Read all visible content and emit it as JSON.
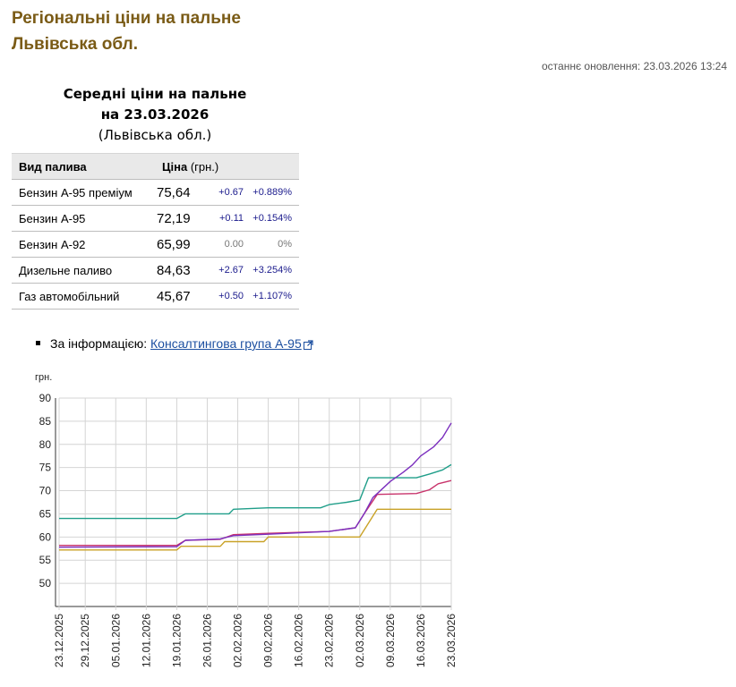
{
  "page": {
    "title_line1": "Регіональні ціни на пальне",
    "title_line2": "Львівська обл.",
    "updated": "останнє оновлення: 23.03.2026 13:24"
  },
  "table": {
    "caption_line1": "Середні ціни на пальне",
    "caption_line2": "на 23.03.2026",
    "caption_region": "(Львівська обл.)",
    "header_fuel": "Вид палива",
    "header_price": "Ціна",
    "header_unit": "(грн.)",
    "rows": [
      {
        "fuel": "Бензин А-95 преміум",
        "price": "75,64",
        "change": "+0.67",
        "pct": "+0.889%"
      },
      {
        "fuel": "Бензин А-95",
        "price": "72,19",
        "change": "+0.11",
        "pct": "+0.154%"
      },
      {
        "fuel": "Бензин А-92",
        "price": "65,99",
        "change": "0.00",
        "pct": "0%"
      },
      {
        "fuel": "Дизельне паливо",
        "price": "84,63",
        "change": "+2.67",
        "pct": "+3.254%"
      },
      {
        "fuel": "Газ автомобільний",
        "price": "45,67",
        "change": "+0.50",
        "pct": "+1.107%"
      }
    ]
  },
  "info": {
    "prefix": "За інформацією:",
    "link_text": "Консалтингова група А-95",
    "icon": "external-link-icon"
  },
  "chart_data": {
    "type": "line",
    "ylabel": "грн.",
    "ylim": [
      45,
      90
    ],
    "yticks": [
      50,
      55,
      60,
      65,
      70,
      75,
      80,
      85,
      90
    ],
    "grid": true,
    "xlim": [
      "2025-12-23",
      "2026-03-23"
    ],
    "xticks": [
      "23.12.2025",
      "29.12.2025",
      "05.01.2026",
      "12.01.2026",
      "19.01.2026",
      "26.01.2026",
      "02.02.2026",
      "09.02.2026",
      "16.02.2026",
      "23.02.2026",
      "02.03.2026",
      "09.03.2026",
      "16.03.2026",
      "23.03.2026"
    ],
    "series": [
      {
        "color": "#1f9e89",
        "points": [
          [
            "2025-12-23",
            64
          ],
          [
            "2026-01-19",
            64
          ],
          [
            "2026-01-21",
            65
          ],
          [
            "2026-01-31",
            65
          ],
          [
            "2026-02-01",
            66
          ],
          [
            "2026-02-09",
            66.3
          ],
          [
            "2026-02-21",
            66.3
          ],
          [
            "2026-02-23",
            67
          ],
          [
            "2026-02-27",
            67.5
          ],
          [
            "2026-03-02",
            68
          ],
          [
            "2026-03-04",
            72.8
          ],
          [
            "2026-03-15",
            72.8
          ],
          [
            "2026-03-18",
            73.6
          ],
          [
            "2026-03-21",
            74.5
          ],
          [
            "2026-03-23",
            75.64
          ]
        ]
      },
      {
        "color": "#c8336b",
        "points": [
          [
            "2025-12-23",
            58.2
          ],
          [
            "2026-01-19",
            58.2
          ],
          [
            "2026-01-21",
            59.3
          ],
          [
            "2026-01-29",
            59.5
          ],
          [
            "2026-02-01",
            60.5
          ],
          [
            "2026-02-09",
            60.8
          ],
          [
            "2026-02-23",
            61.2
          ],
          [
            "2026-03-01",
            62
          ],
          [
            "2026-03-03",
            65
          ],
          [
            "2026-03-06",
            69.2
          ],
          [
            "2026-03-15",
            69.4
          ],
          [
            "2026-03-18",
            70.2
          ],
          [
            "2026-03-20",
            71.5
          ],
          [
            "2026-03-23",
            72.19
          ]
        ]
      },
      {
        "color": "#c9a227",
        "points": [
          [
            "2025-12-23",
            57.2
          ],
          [
            "2026-01-19",
            57.2
          ],
          [
            "2026-01-20",
            58
          ],
          [
            "2026-01-29",
            58
          ],
          [
            "2026-01-30",
            59
          ],
          [
            "2026-02-08",
            59
          ],
          [
            "2026-02-09",
            60
          ],
          [
            "2026-03-02",
            60
          ],
          [
            "2026-03-06",
            66
          ],
          [
            "2026-03-23",
            65.99
          ]
        ]
      },
      {
        "color": "#7b2fbe",
        "points": [
          [
            "2025-12-23",
            57.8
          ],
          [
            "2026-01-19",
            57.9
          ],
          [
            "2026-01-21",
            59.3
          ],
          [
            "2026-01-29",
            59.6
          ],
          [
            "2026-02-01",
            60.3
          ],
          [
            "2026-02-09",
            60.6
          ],
          [
            "2026-02-23",
            61.2
          ],
          [
            "2026-03-01",
            62
          ],
          [
            "2026-03-03",
            65
          ],
          [
            "2026-03-05",
            68.5
          ],
          [
            "2026-03-09",
            72
          ],
          [
            "2026-03-12",
            74
          ],
          [
            "2026-03-14",
            75.5
          ],
          [
            "2026-03-16",
            77.5
          ],
          [
            "2026-03-19",
            79.5
          ],
          [
            "2026-03-21",
            81.5
          ],
          [
            "2026-03-23",
            84.63
          ]
        ]
      }
    ]
  }
}
